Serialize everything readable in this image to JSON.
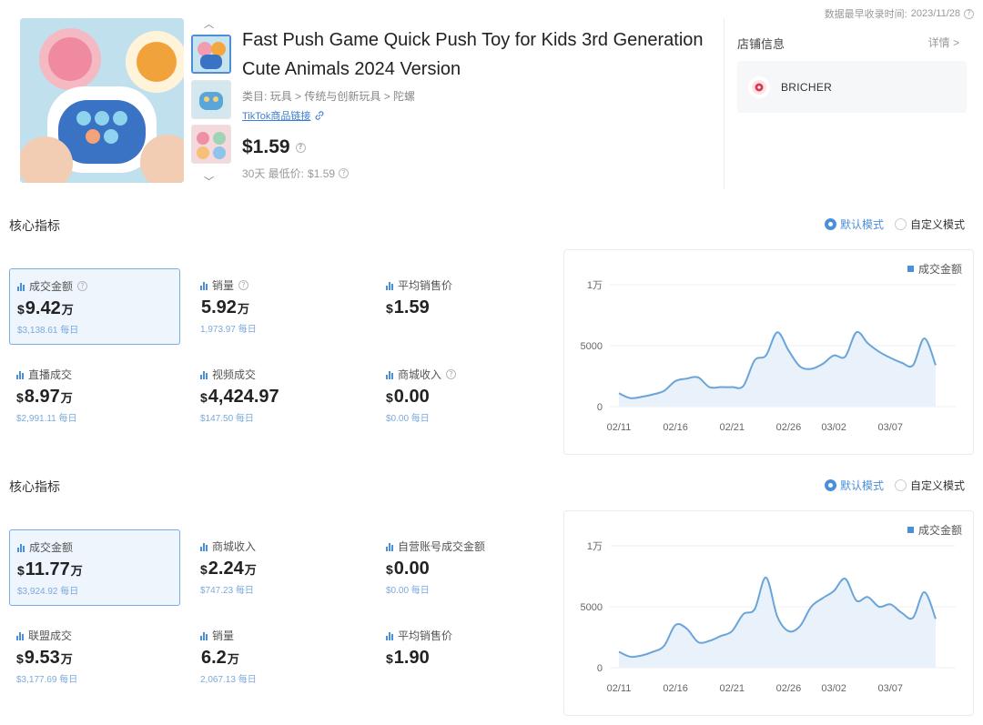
{
  "meta": {
    "earliest_label": "数据最早收录时间:",
    "earliest_date": "2023/11/28"
  },
  "product": {
    "title": "Fast Push Game Quick Push Toy for Kids 3rd Generation Cute Animals 2024 Version",
    "category_label": "类目:",
    "category_path": "玩具 > 传统与创新玩具 > 陀螺",
    "tiktok_link": "TikTok商品链接",
    "price": "$1.59",
    "lowest_label": "30天 最低价:",
    "lowest_price": "$1.59"
  },
  "shop": {
    "label": "店铺信息",
    "detail": "详情 >",
    "name": "BRICHER"
  },
  "sections": [
    {
      "title": "核心指标",
      "modes": [
        "默认模式",
        "自定义模式"
      ],
      "metrics": [
        {
          "label": "成交金额",
          "currency": "$",
          "value": "9.42",
          "unit": "万",
          "daily": "$3,138.61 每日",
          "help": "?"
        },
        {
          "label": "销量",
          "currency": "",
          "value": "5.92",
          "unit": "万",
          "daily": "1,973.97 每日",
          "help": "?"
        },
        {
          "label": "平均销售价",
          "currency": "$",
          "value": "1.59",
          "unit": "",
          "daily": ""
        },
        {
          "label": "直播成交",
          "currency": "$",
          "value": "8.97",
          "unit": "万",
          "daily": "$2,991.11 每日"
        },
        {
          "label": "视频成交",
          "currency": "$",
          "value": "4,424.97",
          "unit": "",
          "daily": "$147.50 每日"
        },
        {
          "label": "商城收入",
          "currency": "$",
          "value": "0.00",
          "unit": "",
          "daily": "$0.00 每日",
          "help": "?"
        }
      ]
    },
    {
      "title": "核心指标",
      "modes": [
        "默认模式",
        "自定义模式"
      ],
      "metrics": [
        {
          "label": "成交金额",
          "currency": "$",
          "value": "11.77",
          "unit": "万",
          "daily": "$3,924.92 每日"
        },
        {
          "label": "商城收入",
          "currency": "$",
          "value": "2.24",
          "unit": "万",
          "daily": "$747.23 每日"
        },
        {
          "label": "自营账号成交金额",
          "currency": "$",
          "value": "0.00",
          "unit": "",
          "daily": "$0.00 每日"
        },
        {
          "label": "联盟成交",
          "currency": "$",
          "value": "9.53",
          "unit": "万",
          "daily": "$3,177.69 每日"
        },
        {
          "label": "销量",
          "currency": "",
          "value": "6.2",
          "unit": "万",
          "daily": "2,067.13 每日"
        },
        {
          "label": "平均销售价",
          "currency": "$",
          "value": "1.90",
          "unit": "",
          "daily": ""
        }
      ]
    }
  ],
  "chart_data": [
    {
      "type": "area",
      "legend": [
        "成交金额"
      ],
      "y_ticks": [
        "1万",
        "5000",
        "0"
      ],
      "ylim": [
        0,
        10000
      ],
      "x_ticks": [
        "02/11",
        "02/16",
        "02/21",
        "02/26",
        "03/02",
        "03/07"
      ],
      "x": [
        "02/11",
        "02/12",
        "02/13",
        "02/14",
        "02/15",
        "02/16",
        "02/17",
        "02/18",
        "02/19",
        "02/20",
        "02/21",
        "02/22",
        "02/23",
        "02/24",
        "02/25",
        "02/26",
        "02/27",
        "02/28",
        "03/01",
        "03/02",
        "03/03",
        "03/04",
        "03/05",
        "03/06",
        "03/07",
        "03/08",
        "03/09",
        "03/10",
        "03/11"
      ],
      "series": [
        {
          "name": "成交金额",
          "values": [
            1100,
            700,
            800,
            1000,
            1300,
            2100,
            2300,
            2400,
            1600,
            1600,
            1600,
            1700,
            3800,
            4200,
            6100,
            4600,
            3300,
            3100,
            3500,
            4200,
            4100,
            6100,
            5200,
            4500,
            4000,
            3600,
            3400,
            5600,
            3400
          ]
        }
      ]
    },
    {
      "type": "area",
      "legend": [
        "成交金额"
      ],
      "y_ticks": [
        "1万",
        "5000",
        "0"
      ],
      "ylim": [
        0,
        10000
      ],
      "x_ticks": [
        "02/11",
        "02/16",
        "02/21",
        "02/26",
        "03/02",
        "03/07"
      ],
      "x": [
        "02/11",
        "02/12",
        "02/13",
        "02/14",
        "02/15",
        "02/16",
        "02/17",
        "02/18",
        "02/19",
        "02/20",
        "02/21",
        "02/22",
        "02/23",
        "02/24",
        "02/25",
        "02/26",
        "02/27",
        "02/28",
        "03/01",
        "03/02",
        "03/03",
        "03/04",
        "03/05",
        "03/06",
        "03/07",
        "03/08",
        "03/09",
        "03/10",
        "03/11"
      ],
      "series": [
        {
          "name": "成交金额",
          "values": [
            1300,
            900,
            1000,
            1300,
            1800,
            3500,
            3200,
            2100,
            2200,
            2600,
            3000,
            4400,
            4800,
            7400,
            4200,
            3000,
            3400,
            5000,
            5700,
            6300,
            7300,
            5500,
            5800,
            5000,
            5200,
            4500,
            4100,
            6200,
            4000
          ]
        }
      ]
    }
  ]
}
